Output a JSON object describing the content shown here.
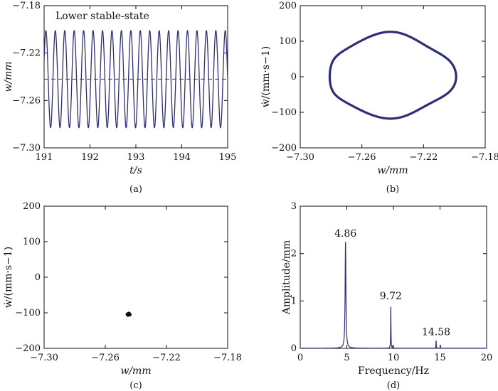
{
  "colors": {
    "series": "#2e2e78",
    "point": "#111111",
    "axis": "#111111",
    "dash": "#444444"
  },
  "chart_data": [
    {
      "id": "a",
      "type": "line",
      "caption": "(a)",
      "annotation": "Lower stable-state",
      "xlabel": "t/s",
      "ylabel": "w/mm",
      "xlim": [
        191,
        195
      ],
      "ylim": [
        -7.3,
        -7.18
      ],
      "xticks": [
        "191",
        "192",
        "193",
        "194",
        "195"
      ],
      "yticks": [
        "−7.30",
        "−7.26",
        "−7.22",
        "−7.18"
      ],
      "series": [
        {
          "frequency_hz": 4.86,
          "mean": -7.242,
          "min": -7.283,
          "max": -7.201
        }
      ],
      "reference_line_y": -7.242
    },
    {
      "id": "b",
      "type": "line",
      "caption": "(b)",
      "xlabel": "w/mm",
      "ylabel": "ẇ/(mm·s−1)",
      "xlim": [
        -7.3,
        -7.18
      ],
      "ylim": [
        -200,
        200
      ],
      "xticks": [
        "−7.30",
        "−7.26",
        "−7.22",
        "−7.18"
      ],
      "yticks": [
        "−200",
        "−100",
        "0",
        "100",
        "200"
      ],
      "series": [
        {
          "center_w": -7.2415,
          "w_min": -7.283,
          "w_max": -7.201,
          "wdot_max": 116,
          "wdot_min": -108
        }
      ]
    },
    {
      "id": "c",
      "type": "scatter",
      "caption": "(c)",
      "xlabel": "w/mm",
      "ylabel": "ẇ/(mm·s−1)",
      "xlim": [
        -7.3,
        -7.18
      ],
      "ylim": [
        -200,
        200
      ],
      "xticks": [
        "−7.30",
        "−7.26",
        "−7.22",
        "−7.18"
      ],
      "yticks": [
        "−200",
        "−100",
        "0",
        "100",
        "200"
      ],
      "points": [
        {
          "x": -7.2455,
          "y": -104
        },
        {
          "x": -7.2448,
          "y": -103
        },
        {
          "x": -7.244,
          "y": -105
        },
        {
          "x": -7.2452,
          "y": -106
        },
        {
          "x": -7.2445,
          "y": -102
        }
      ]
    },
    {
      "id": "d",
      "type": "line",
      "caption": "(d)",
      "xlabel": "Frequency/Hz",
      "ylabel": "Amplitude/mm",
      "xlim": [
        0,
        20
      ],
      "ylim": [
        0,
        3
      ],
      "xticks": [
        "0",
        "5",
        "10",
        "15",
        "20"
      ],
      "yticks": [
        "0",
        "1",
        "2",
        "3"
      ],
      "peaks": [
        {
          "x": 4.86,
          "y": 2.25,
          "label": "4.86"
        },
        {
          "x": 9.72,
          "y": 0.93,
          "label": "9.72"
        },
        {
          "x": 14.58,
          "y": 0.17,
          "label": "14.58"
        }
      ]
    }
  ]
}
